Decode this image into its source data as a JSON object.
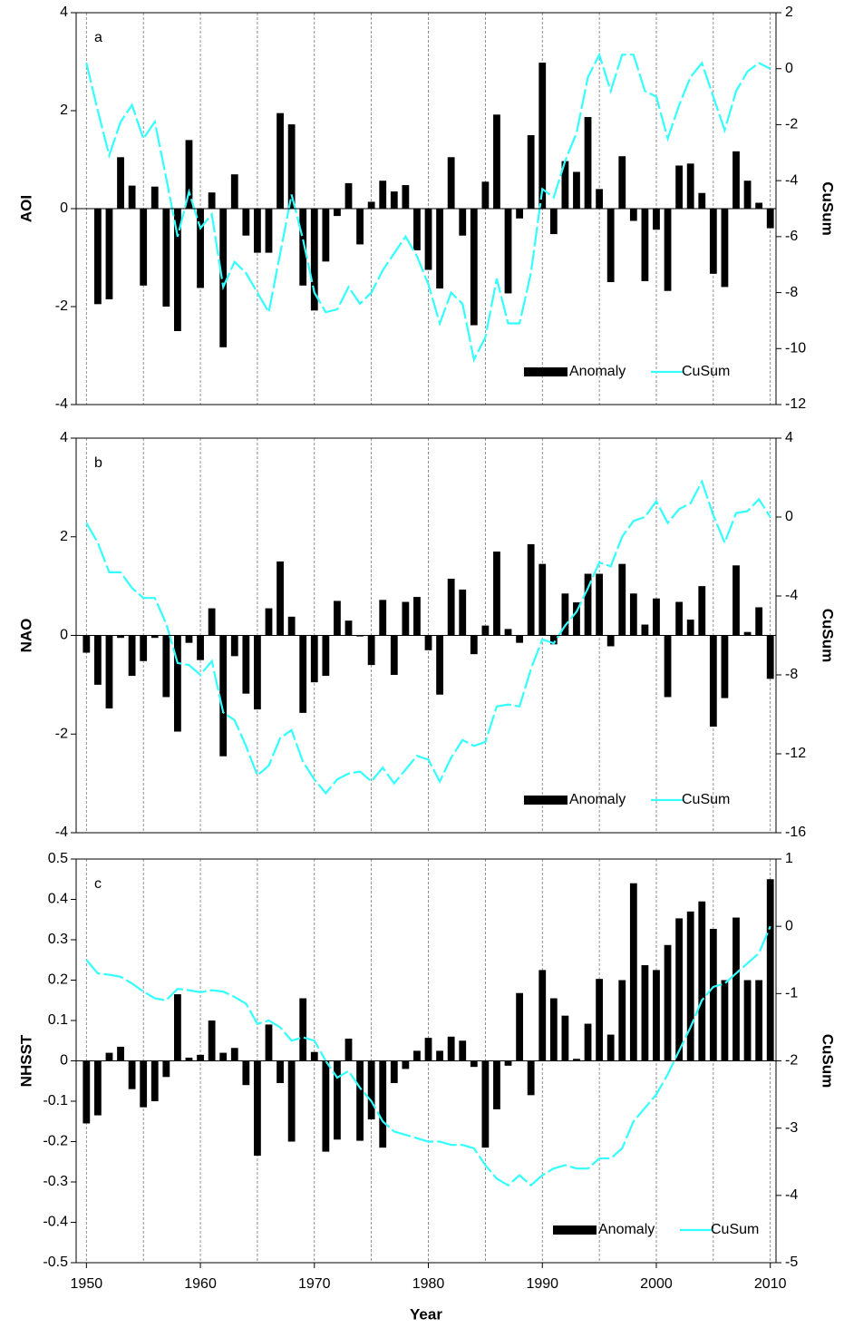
{
  "chart_data": [
    {
      "type": "combo",
      "panel_label": "a",
      "y_label": "AOI",
      "y2_label": "CuSum",
      "legend": "lower right",
      "grid": true,
      "x": [
        1950,
        1951,
        1952,
        1953,
        1954,
        1955,
        1956,
        1957,
        1958,
        1959,
        1960,
        1961,
        1962,
        1963,
        1964,
        1965,
        1966,
        1967,
        1968,
        1969,
        1970,
        1971,
        1972,
        1973,
        1974,
        1975,
        1976,
        1977,
        1978,
        1979,
        1980,
        1981,
        1982,
        1983,
        1984,
        1985,
        1986,
        1987,
        1988,
        1989,
        1990,
        1991,
        1992,
        1993,
        1994,
        1995,
        1996,
        1997,
        1998,
        1999,
        2000,
        2001,
        2002,
        2003,
        2004,
        2005,
        2006,
        2007,
        2008,
        2009,
        2010
      ],
      "xlim": [
        1949.1,
        2010.5
      ],
      "ylim": [
        -4,
        4
      ],
      "yticks": [
        -4,
        -2,
        0,
        2,
        4
      ],
      "y2lim": [
        -12,
        2
      ],
      "y2ticks": [
        -12,
        -10,
        -8,
        -6,
        -4,
        -2,
        0,
        2
      ],
      "series": [
        {
          "name": "Anomaly",
          "type": "bar",
          "color": "#000000",
          "values": [
            0,
            -1.95,
            -1.85,
            1.05,
            0.47,
            -1.57,
            0.45,
            -2.0,
            -2.5,
            1.4,
            -1.62,
            0.33,
            -2.83,
            0.7,
            -0.55,
            -0.9,
            -0.9,
            1.95,
            1.72,
            -1.57,
            -2.08,
            -1.08,
            -0.15,
            0.52,
            -0.73,
            0.14,
            0.57,
            0.35,
            0.48,
            -0.85,
            -1.25,
            -1.63,
            1.05,
            -0.55,
            -2.38,
            0.55,
            1.92,
            -1.73,
            -0.2,
            1.5,
            2.98,
            -0.52,
            0.97,
            0.75,
            1.87,
            0.4,
            -1.5,
            1.07,
            -0.25,
            -1.48,
            -0.43,
            -1.68,
            0.88,
            0.92,
            0.32,
            -1.33,
            -1.6,
            1.17,
            0.57,
            0.12,
            -0.4
          ]
        },
        {
          "name": "CuSum",
          "type": "line",
          "axis": "y2",
          "color": "#33ffff",
          "values": [
            0.2,
            -1.5,
            -3.1,
            -1.9,
            -1.3,
            -2.5,
            -1.9,
            -3.9,
            -6.0,
            -4.4,
            -5.7,
            -5.2,
            -7.8,
            -6.9,
            -7.3,
            -8.0,
            -8.7,
            -6.6,
            -4.5,
            -6.1,
            -8.0,
            -8.7,
            -8.6,
            -7.8,
            -8.4,
            -8.0,
            -7.2,
            -6.6,
            -6.0,
            -6.7,
            -7.7,
            -9.1,
            -8.0,
            -8.4,
            -10.4,
            -9.6,
            -7.5,
            -9.1,
            -9.1,
            -7.3,
            -4.3,
            -4.6,
            -3.3,
            -2.3,
            -0.3,
            0.5,
            -0.8,
            0.5,
            0.5,
            -0.8,
            -1.0,
            -2.5,
            -1.3,
            -0.3,
            0.2,
            -1.0,
            -2.2,
            -0.8,
            -0.1,
            0.2,
            0.0
          ]
        }
      ]
    },
    {
      "type": "combo",
      "panel_label": "b",
      "y_label": "NAO",
      "y2_label": "CuSum",
      "legend": "lower right",
      "grid": true,
      "x": [
        1950,
        1951,
        1952,
        1953,
        1954,
        1955,
        1956,
        1957,
        1958,
        1959,
        1960,
        1961,
        1962,
        1963,
        1964,
        1965,
        1966,
        1967,
        1968,
        1969,
        1970,
        1971,
        1972,
        1973,
        1974,
        1975,
        1976,
        1977,
        1978,
        1979,
        1980,
        1981,
        1982,
        1983,
        1984,
        1985,
        1986,
        1987,
        1988,
        1989,
        1990,
        1991,
        1992,
        1993,
        1994,
        1995,
        1996,
        1997,
        1998,
        1999,
        2000,
        2001,
        2002,
        2003,
        2004,
        2005,
        2006,
        2007,
        2008,
        2009,
        2010
      ],
      "xlim": [
        1949.1,
        2010.5
      ],
      "ylim": [
        -4,
        4
      ],
      "yticks": [
        -4,
        -2,
        0,
        2,
        4
      ],
      "y2lim": [
        -16,
        4
      ],
      "y2ticks": [
        -16,
        -12,
        -8,
        -4,
        0,
        4
      ],
      "series": [
        {
          "name": "Anomaly",
          "type": "bar",
          "color": "#000000",
          "values": [
            -0.35,
            -1.0,
            -1.48,
            -0.05,
            -0.82,
            -0.52,
            -0.05,
            -1.25,
            -1.95,
            -0.15,
            -0.5,
            0.55,
            -2.45,
            -0.42,
            -1.18,
            -1.5,
            0.55,
            1.5,
            0.38,
            -1.57,
            -0.95,
            -0.82,
            0.7,
            0.3,
            -0.02,
            -0.6,
            0.72,
            -0.8,
            0.68,
            0.78,
            -0.3,
            -1.2,
            1.15,
            0.93,
            -0.38,
            0.2,
            1.7,
            0.13,
            -0.15,
            1.85,
            1.45,
            -0.18,
            0.85,
            0.67,
            1.25,
            1.25,
            -0.22,
            1.45,
            0.85,
            0.22,
            0.75,
            -1.25,
            0.68,
            0.32,
            1.0,
            -1.85,
            -1.27,
            1.42,
            0.07,
            0.57,
            -0.88
          ]
        },
        {
          "name": "CuSum",
          "type": "line",
          "axis": "y2",
          "color": "#33ffff",
          "values": [
            -0.3,
            -1.3,
            -2.8,
            -2.8,
            -3.6,
            -4.1,
            -4.1,
            -5.4,
            -7.4,
            -7.5,
            -8.0,
            -7.3,
            -9.9,
            -10.3,
            -11.6,
            -13.1,
            -12.6,
            -11.2,
            -10.8,
            -12.4,
            -13.3,
            -14.0,
            -13.3,
            -13.0,
            -12.9,
            -13.4,
            -12.7,
            -13.5,
            -12.8,
            -12.1,
            -12.3,
            -13.4,
            -12.2,
            -11.3,
            -11.6,
            -11.4,
            -9.6,
            -9.5,
            -9.6,
            -7.7,
            -6.2,
            -6.4,
            -5.5,
            -4.8,
            -3.6,
            -2.3,
            -2.5,
            -1.0,
            -0.2,
            0.0,
            0.8,
            -0.3,
            0.4,
            0.7,
            1.8,
            0.1,
            -1.3,
            0.2,
            0.3,
            0.9,
            0.0
          ]
        }
      ]
    },
    {
      "type": "combo",
      "panel_label": "c",
      "y_label": "NHSST",
      "y2_label": "CuSum",
      "x_label": "Year",
      "legend": "lower right",
      "grid": true,
      "x": [
        1950,
        1951,
        1952,
        1953,
        1954,
        1955,
        1956,
        1957,
        1958,
        1959,
        1960,
        1961,
        1962,
        1963,
        1964,
        1965,
        1966,
        1967,
        1968,
        1969,
        1970,
        1971,
        1972,
        1973,
        1974,
        1975,
        1976,
        1977,
        1978,
        1979,
        1980,
        1981,
        1982,
        1983,
        1984,
        1985,
        1986,
        1987,
        1988,
        1989,
        1990,
        1991,
        1992,
        1993,
        1994,
        1995,
        1996,
        1997,
        1998,
        1999,
        2000,
        2001,
        2002,
        2003,
        2004,
        2005,
        2006,
        2007,
        2008,
        2009,
        2010
      ],
      "xlim": [
        1949.1,
        2010.5
      ],
      "xticks": [
        1950,
        1960,
        1970,
        1980,
        1990,
        2000,
        2010
      ],
      "ylim": [
        -0.5,
        0.5
      ],
      "yticks": [
        -0.5,
        -0.4,
        -0.3,
        -0.2,
        -0.1,
        0,
        0.1,
        0.2,
        0.3,
        0.4,
        0.5
      ],
      "y2lim": [
        -5,
        1
      ],
      "y2ticks": [
        -5,
        -4,
        -3,
        -2,
        -1,
        0,
        1
      ],
      "series": [
        {
          "name": "Anomaly",
          "type": "bar",
          "color": "#000000",
          "values": [
            -0.155,
            -0.135,
            0.02,
            0.035,
            -0.07,
            -0.115,
            -0.1,
            -0.04,
            0.165,
            0.008,
            0.015,
            0.1,
            0.02,
            0.032,
            -0.06,
            -0.235,
            0.09,
            -0.055,
            -0.2,
            0.155,
            0.022,
            -0.225,
            -0.195,
            0.055,
            -0.198,
            -0.145,
            -0.215,
            -0.055,
            -0.02,
            0.025,
            0.057,
            0.025,
            0.06,
            0.05,
            -0.015,
            -0.215,
            -0.12,
            -0.012,
            0.168,
            -0.085,
            0.225,
            0.155,
            0.112,
            0.005,
            0.092,
            0.203,
            0.065,
            0.2,
            0.44,
            0.237,
            0.225,
            0.287,
            0.353,
            0.37,
            0.395,
            0.327,
            0.2,
            0.355,
            0.2,
            0.2,
            0.45
          ]
        },
        {
          "name": "CuSum",
          "type": "line",
          "axis": "y2",
          "color": "#33ffff",
          "values": [
            -0.5,
            -0.7,
            -0.72,
            -0.75,
            -0.85,
            -0.97,
            -1.07,
            -1.1,
            -0.93,
            -0.95,
            -0.98,
            -0.95,
            -0.97,
            -1.05,
            -1.15,
            -1.45,
            -1.4,
            -1.5,
            -1.7,
            -1.65,
            -1.7,
            -2.0,
            -2.25,
            -2.15,
            -2.4,
            -2.6,
            -2.9,
            -3.05,
            -3.1,
            -3.15,
            -3.2,
            -3.2,
            -3.25,
            -3.25,
            -3.3,
            -3.55,
            -3.75,
            -3.85,
            -3.7,
            -3.85,
            -3.7,
            -3.6,
            -3.55,
            -3.6,
            -3.6,
            -3.45,
            -3.45,
            -3.3,
            -2.9,
            -2.7,
            -2.5,
            -2.2,
            -1.85,
            -1.5,
            -1.1,
            -0.9,
            -0.85,
            -0.7,
            -0.55,
            -0.4,
            0.0
          ]
        }
      ]
    }
  ]
}
